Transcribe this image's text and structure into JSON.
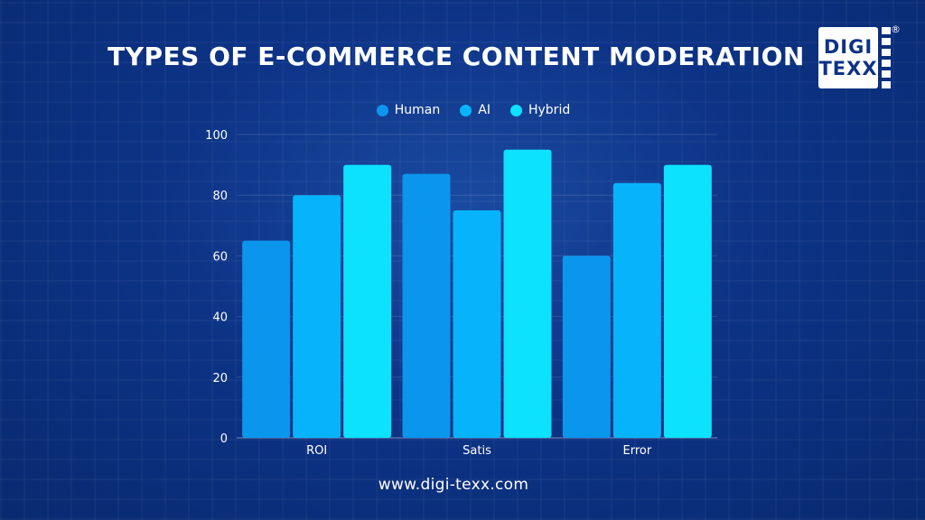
{
  "title": "TYPES OF E-COMMERCE CONTENT MODERATION",
  "logo": {
    "line1": "DIGI",
    "line2": "TEXX",
    "mark": "®"
  },
  "footer": "www.digi-texx.com",
  "colors": {
    "Human": "#0b96ee",
    "AI": "#07b4fb",
    "Hybrid": "#0de2fd"
  },
  "chart_data": {
    "type": "bar",
    "title": "TYPES OF E-COMMERCE CONTENT MODERATION",
    "xlabel": "",
    "ylabel": "",
    "categories": [
      "ROI",
      "Satis",
      "Error"
    ],
    "series": [
      {
        "name": "Human",
        "values": [
          65,
          87,
          60
        ]
      },
      {
        "name": "AI",
        "values": [
          80,
          75,
          84
        ]
      },
      {
        "name": "Hybrid",
        "values": [
          90,
          95,
          90
        ]
      }
    ],
    "ylim": [
      0,
      100
    ],
    "yticks": [
      0,
      20,
      40,
      60,
      80,
      100
    ],
    "legend_position": "top-center",
    "grid": true
  }
}
